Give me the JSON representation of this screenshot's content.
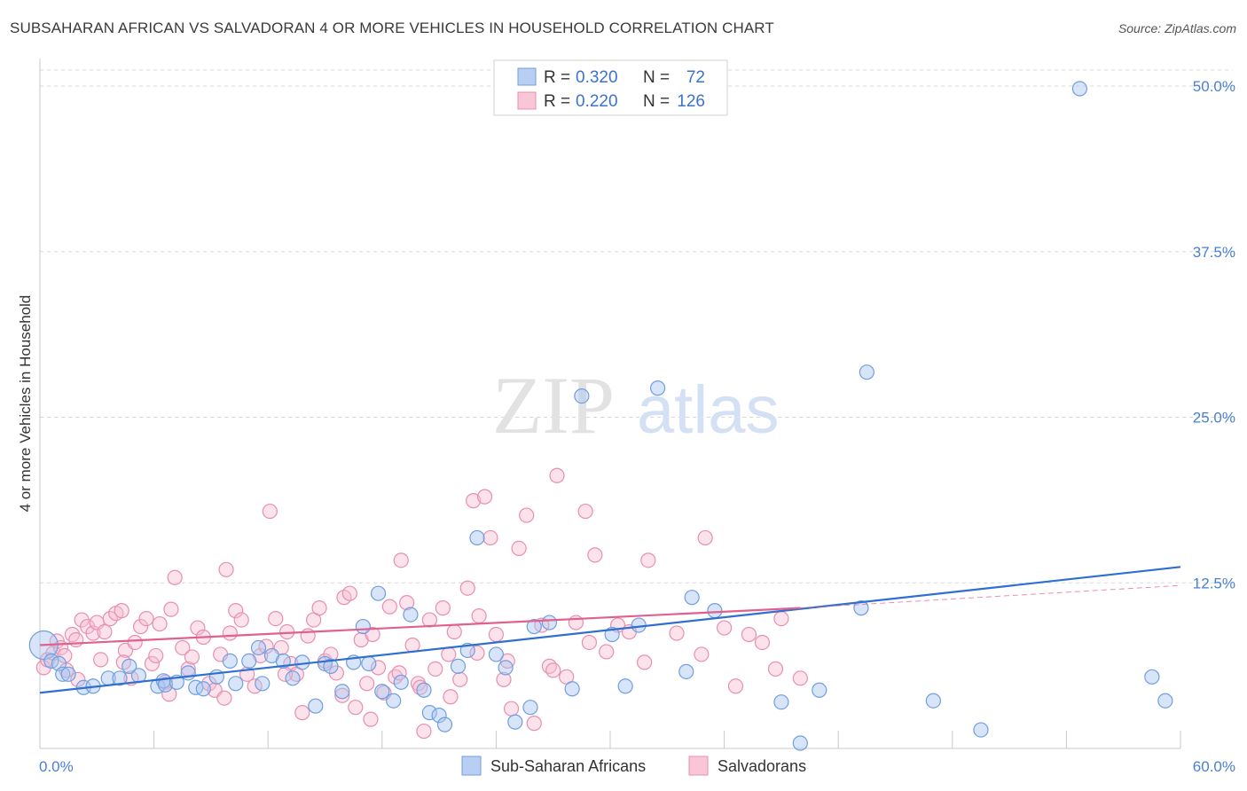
{
  "title": "SUBSAHARAN AFRICAN VS SALVADORAN 4 OR MORE VEHICLES IN HOUSEHOLD CORRELATION CHART",
  "source": "Source: ZipAtlas.com",
  "colors": {
    "blue": "#6f9ee0",
    "blue_fill": "#a9c6f0",
    "blue_line": "#2f6fd0",
    "pink": "#e88fb0",
    "pink_fill": "#f6bfd2",
    "pink_line": "#e0608e",
    "axis_text": "#4a7fd4",
    "grid": "#d8d8d8"
  },
  "legend": {
    "rows": [
      {
        "r_label": "R =",
        "r_value": "0.320",
        "n_label": "N =",
        "n_value": "72",
        "color": "blue"
      },
      {
        "r_label": "R =",
        "r_value": "0.220",
        "n_label": "N =",
        "n_value": "126",
        "color": "pink"
      }
    ]
  },
  "chart_data": {
    "type": "scatter",
    "title": "SUBSAHARAN AFRICAN VS SALVADORAN 4 OR MORE VEHICLES IN HOUSEHOLD CORRELATION CHART",
    "xlabel": "",
    "ylabel": "4 or more Vehicles in Household",
    "xlim": [
      0,
      60
    ],
    "ylim": [
      0,
      52
    ],
    "x_tick_labels": [
      "0.0%",
      "60.0%"
    ],
    "y_ticks": [
      12.5,
      25.0,
      37.5,
      50.0
    ],
    "y_tick_labels": [
      "12.5%",
      "25.0%",
      "37.5%",
      "50.0%"
    ],
    "watermark": {
      "left": "ZIP",
      "right": "atlas"
    },
    "series": [
      {
        "name": "Sub-Saharan Africans",
        "color": "blue",
        "trend": {
          "x": [
            0,
            60
          ],
          "y": [
            4.2,
            13.7
          ]
        },
        "points": [
          [
            0.2,
            7.8
          ],
          [
            0.6,
            6.6
          ],
          [
            1.0,
            6.4
          ],
          [
            1.2,
            5.6
          ],
          [
            1.5,
            5.6
          ],
          [
            2.3,
            4.6
          ],
          [
            2.8,
            4.7
          ],
          [
            3.6,
            5.3
          ],
          [
            4.2,
            5.3
          ],
          [
            4.7,
            6.2
          ],
          [
            5.2,
            5.5
          ],
          [
            6.2,
            4.7
          ],
          [
            6.5,
            5.1
          ],
          [
            6.6,
            4.8
          ],
          [
            7.2,
            5.0
          ],
          [
            7.8,
            5.7
          ],
          [
            8.2,
            4.6
          ],
          [
            8.6,
            4.5
          ],
          [
            9.3,
            5.4
          ],
          [
            10.0,
            6.6
          ],
          [
            10.3,
            4.9
          ],
          [
            11.0,
            6.6
          ],
          [
            11.5,
            7.6
          ],
          [
            11.7,
            4.9
          ],
          [
            12.2,
            7.0
          ],
          [
            12.8,
            6.6
          ],
          [
            13.3,
            5.3
          ],
          [
            13.8,
            6.5
          ],
          [
            14.5,
            3.2
          ],
          [
            15.0,
            6.4
          ],
          [
            15.3,
            6.2
          ],
          [
            15.9,
            4.3
          ],
          [
            16.5,
            6.5
          ],
          [
            17.0,
            9.2
          ],
          [
            17.3,
            6.4
          ],
          [
            17.8,
            11.7
          ],
          [
            18.0,
            4.3
          ],
          [
            18.6,
            3.6
          ],
          [
            19.0,
            5.0
          ],
          [
            19.5,
            10.1
          ],
          [
            20.2,
            4.4
          ],
          [
            20.5,
            2.7
          ],
          [
            21.0,
            2.5
          ],
          [
            21.3,
            1.8
          ],
          [
            22.0,
            6.2
          ],
          [
            22.5,
            7.4
          ],
          [
            23.0,
            15.9
          ],
          [
            24.0,
            7.1
          ],
          [
            24.5,
            6.1
          ],
          [
            25.0,
            2.0
          ],
          [
            25.8,
            3.1
          ],
          [
            26.0,
            9.2
          ],
          [
            26.8,
            9.5
          ],
          [
            28.0,
            4.5
          ],
          [
            28.5,
            26.6
          ],
          [
            30.1,
            8.6
          ],
          [
            30.8,
            4.7
          ],
          [
            31.5,
            9.3
          ],
          [
            32.5,
            27.2
          ],
          [
            34.0,
            5.8
          ],
          [
            34.3,
            11.4
          ],
          [
            35.5,
            10.4
          ],
          [
            39.0,
            3.5
          ],
          [
            40.0,
            0.4
          ],
          [
            41.0,
            4.4
          ],
          [
            43.2,
            10.6
          ],
          [
            43.5,
            28.4
          ],
          [
            47.0,
            3.6
          ],
          [
            49.5,
            1.4
          ],
          [
            54.7,
            49.8
          ],
          [
            58.5,
            5.4
          ],
          [
            59.2,
            3.6
          ]
        ]
      },
      {
        "name": "Salvadorans",
        "color": "pink",
        "trend": {
          "x": [
            0,
            40
          ],
          "y": [
            7.8,
            10.6
          ]
        },
        "trend_extension": {
          "x": [
            40,
            60
          ],
          "y": [
            10.6,
            12.3
          ]
        },
        "points": [
          [
            0.2,
            6.1
          ],
          [
            0.4,
            6.7
          ],
          [
            0.7,
            7.2
          ],
          [
            0.9,
            8.1
          ],
          [
            1.1,
            7.6
          ],
          [
            1.3,
            7.0
          ],
          [
            1.7,
            8.6
          ],
          [
            1.9,
            8.2
          ],
          [
            2.2,
            9.7
          ],
          [
            2.5,
            9.2
          ],
          [
            2.8,
            8.7
          ],
          [
            3.0,
            9.5
          ],
          [
            3.4,
            8.8
          ],
          [
            3.7,
            9.8
          ],
          [
            4.0,
            10.2
          ],
          [
            4.3,
            10.4
          ],
          [
            4.5,
            7.4
          ],
          [
            4.8,
            5.3
          ],
          [
            5.0,
            8.0
          ],
          [
            5.3,
            9.2
          ],
          [
            5.6,
            9.8
          ],
          [
            5.9,
            6.4
          ],
          [
            6.1,
            7.0
          ],
          [
            6.3,
            9.4
          ],
          [
            6.6,
            5.0
          ],
          [
            6.9,
            10.5
          ],
          [
            7.1,
            12.9
          ],
          [
            7.5,
            7.6
          ],
          [
            7.8,
            6.0
          ],
          [
            8.0,
            6.9
          ],
          [
            8.3,
            9.1
          ],
          [
            8.6,
            8.4
          ],
          [
            8.9,
            4.9
          ],
          [
            9.2,
            4.4
          ],
          [
            9.5,
            7.1
          ],
          [
            9.8,
            13.5
          ],
          [
            10.0,
            8.7
          ],
          [
            10.3,
            10.4
          ],
          [
            10.6,
            9.7
          ],
          [
            10.9,
            5.6
          ],
          [
            11.3,
            4.7
          ],
          [
            11.6,
            7.0
          ],
          [
            11.9,
            7.7
          ],
          [
            12.1,
            17.9
          ],
          [
            12.4,
            9.8
          ],
          [
            12.7,
            7.6
          ],
          [
            13.0,
            8.8
          ],
          [
            13.2,
            6.4
          ],
          [
            13.5,
            5.6
          ],
          [
            13.8,
            2.7
          ],
          [
            14.1,
            8.5
          ],
          [
            14.4,
            9.7
          ],
          [
            14.7,
            10.6
          ],
          [
            15.0,
            6.6
          ],
          [
            15.3,
            7.1
          ],
          [
            15.6,
            5.7
          ],
          [
            16.0,
            11.4
          ],
          [
            16.3,
            11.7
          ],
          [
            16.6,
            3.1
          ],
          [
            16.9,
            8.2
          ],
          [
            17.2,
            4.9
          ],
          [
            17.5,
            8.6
          ],
          [
            17.8,
            6.1
          ],
          [
            18.1,
            4.2
          ],
          [
            18.4,
            10.7
          ],
          [
            18.7,
            5.4
          ],
          [
            19.0,
            14.2
          ],
          [
            19.3,
            11.0
          ],
          [
            19.6,
            7.8
          ],
          [
            19.9,
            4.9
          ],
          [
            20.2,
            1.3
          ],
          [
            20.5,
            9.7
          ],
          [
            20.8,
            6.0
          ],
          [
            21.2,
            10.6
          ],
          [
            21.5,
            7.1
          ],
          [
            21.8,
            8.8
          ],
          [
            22.1,
            5.2
          ],
          [
            22.5,
            12.1
          ],
          [
            22.8,
            18.7
          ],
          [
            23.1,
            10.0
          ],
          [
            23.4,
            19.0
          ],
          [
            23.7,
            15.9
          ],
          [
            24.0,
            8.6
          ],
          [
            24.4,
            5.2
          ],
          [
            24.8,
            3.0
          ],
          [
            25.2,
            15.1
          ],
          [
            25.6,
            17.6
          ],
          [
            26.0,
            1.9
          ],
          [
            26.4,
            9.3
          ],
          [
            26.8,
            6.2
          ],
          [
            27.2,
            20.6
          ],
          [
            27.7,
            5.4
          ],
          [
            28.2,
            9.5
          ],
          [
            28.7,
            17.9
          ],
          [
            29.2,
            14.6
          ],
          [
            29.8,
            7.3
          ],
          [
            30.4,
            9.3
          ],
          [
            31.0,
            8.8
          ],
          [
            32.0,
            14.2
          ],
          [
            33.5,
            8.7
          ],
          [
            35.0,
            15.9
          ],
          [
            36.0,
            9.1
          ],
          [
            37.3,
            8.6
          ],
          [
            38.0,
            8.0
          ],
          [
            39.0,
            9.8
          ],
          [
            40.0,
            5.3
          ],
          [
            4.4,
            6.5
          ],
          [
            2.0,
            5.2
          ],
          [
            3.2,
            6.7
          ],
          [
            6.8,
            4.1
          ],
          [
            9.7,
            3.8
          ],
          [
            12.9,
            5.6
          ],
          [
            15.9,
            4.0
          ],
          [
            17.4,
            2.2
          ],
          [
            18.9,
            5.7
          ],
          [
            20.0,
            4.6
          ],
          [
            21.6,
            3.9
          ],
          [
            23.0,
            7.2
          ],
          [
            24.6,
            6.6
          ],
          [
            27.0,
            5.9
          ],
          [
            28.9,
            8.0
          ],
          [
            31.8,
            6.5
          ],
          [
            34.8,
            7.1
          ],
          [
            36.6,
            4.7
          ],
          [
            38.7,
            6.0
          ],
          [
            1.4,
            5.9
          ]
        ]
      }
    ]
  },
  "bottom_legend": {
    "items": [
      {
        "label": "Sub-Saharan Africans",
        "color": "blue"
      },
      {
        "label": "Salvadorans",
        "color": "pink"
      }
    ]
  }
}
